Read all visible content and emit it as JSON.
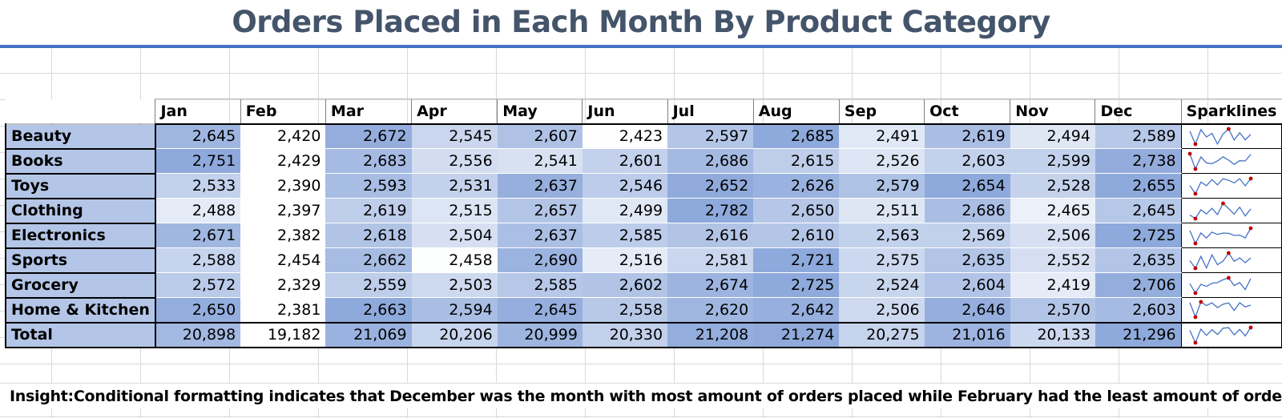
{
  "title": "Orders Placed in Each Month By Product Category",
  "months": [
    "Jan",
    "Feb",
    "Mar",
    "Apr",
    "May",
    "Jun",
    "Jul",
    "Aug",
    "Sep",
    "Oct",
    "Nov",
    "Dec"
  ],
  "sparklines_header": "Sparklines",
  "rows": [
    {
      "label": "Beauty",
      "values": [
        "2,645",
        "2,420",
        "2,672",
        "2,545",
        "2,607",
        "2,423",
        "2,597",
        "2,685",
        "2,491",
        "2,619",
        "2,494",
        "2,589"
      ]
    },
    {
      "label": "Books",
      "values": [
        "2,751",
        "2,429",
        "2,683",
        "2,556",
        "2,541",
        "2,601",
        "2,686",
        "2,615",
        "2,526",
        "2,603",
        "2,599",
        "2,738"
      ]
    },
    {
      "label": "Toys",
      "values": [
        "2,533",
        "2,390",
        "2,593",
        "2,531",
        "2,637",
        "2,546",
        "2,652",
        "2,626",
        "2,579",
        "2,654",
        "2,528",
        "2,655"
      ]
    },
    {
      "label": "Clothing",
      "values": [
        "2,488",
        "2,397",
        "2,619",
        "2,515",
        "2,657",
        "2,499",
        "2,782",
        "2,650",
        "2,511",
        "2,686",
        "2,465",
        "2,645"
      ]
    },
    {
      "label": "Electronics",
      "values": [
        "2,671",
        "2,382",
        "2,618",
        "2,504",
        "2,637",
        "2,585",
        "2,616",
        "2,610",
        "2,563",
        "2,569",
        "2,506",
        "2,725"
      ]
    },
    {
      "label": "Sports",
      "values": [
        "2,588",
        "2,454",
        "2,662",
        "2,458",
        "2,690",
        "2,516",
        "2,581",
        "2,721",
        "2,575",
        "2,635",
        "2,552",
        "2,635"
      ]
    },
    {
      "label": "Grocery",
      "values": [
        "2,572",
        "2,329",
        "2,559",
        "2,503",
        "2,585",
        "2,602",
        "2,674",
        "2,725",
        "2,524",
        "2,604",
        "2,419",
        "2,706"
      ]
    },
    {
      "label": "Home & Kitchen",
      "values": [
        "2,650",
        "2,381",
        "2,663",
        "2,594",
        "2,645",
        "2,558",
        "2,620",
        "2,642",
        "2,506",
        "2,646",
        "2,570",
        "2,603"
      ]
    }
  ],
  "total": {
    "label": "Total",
    "values": [
      "20,898",
      "19,182",
      "21,069",
      "20,206",
      "20,999",
      "20,330",
      "21,208",
      "21,274",
      "20,275",
      "21,016",
      "20,133",
      "21,296"
    ]
  },
  "insight": "Insight:Conditional formatting indicates that December was the month with most amount of orders placed while February had the least amount of orders.",
  "colors": {
    "title_text": "#44546a",
    "title_rule": "#4472c4",
    "row_label_fill": "#b4c6e7",
    "scale_low": "#ffffff",
    "scale_high": "#8ea9db",
    "sparkline_line": "#4472c4",
    "sparkline_marker": "#c00000"
  }
}
